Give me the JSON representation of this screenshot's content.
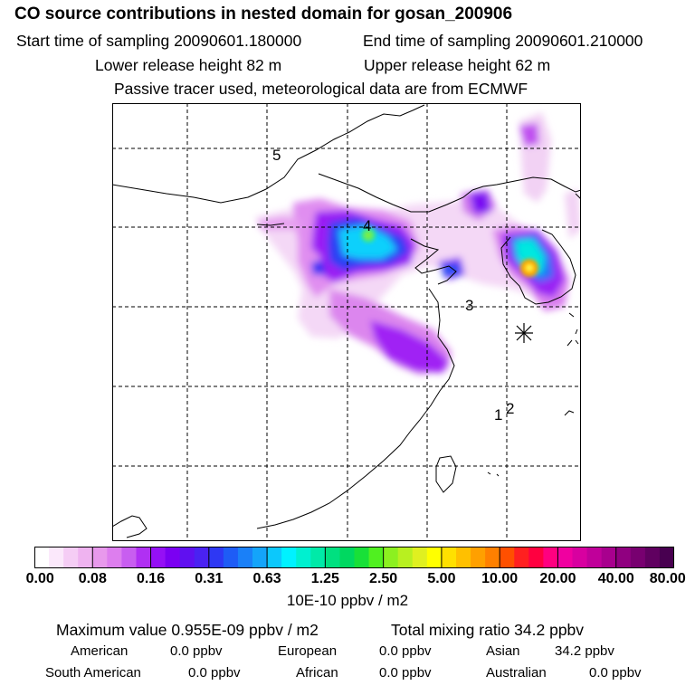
{
  "header": {
    "title": "CO  source contributions in nested domain for gosan_200906",
    "start_label": "Start time of sampling 20090601.180000",
    "end_label": "End time of sampling 20090601.210000",
    "lower_release": "Lower release height   82 m",
    "upper_release": "Upper release height   62 m",
    "tracer_note": "Passive tracer used, meteorological data are from ECMWF"
  },
  "map": {
    "labels": [
      "5",
      "4",
      "3",
      "2",
      "1"
    ],
    "colors": {
      "coast": "#000000",
      "grid": "#000000"
    }
  },
  "colorbar": {
    "colors": [
      "#ffffff",
      "#fbe8fb",
      "#f5cdf5",
      "#efb3f0",
      "#e899ec",
      "#dd7eee",
      "#c85ef0",
      "#b030f3",
      "#9510f5",
      "#7b00f2",
      "#6010f0",
      "#4a22f2",
      "#2e38f4",
      "#1e5cf6",
      "#1a80f8",
      "#14a4fa",
      "#0cc8fc",
      "#00f2ff",
      "#00f0d0",
      "#00eaa8",
      "#00e080",
      "#00d860",
      "#18e038",
      "#50f020",
      "#8cf020",
      "#b8f020",
      "#e0f020",
      "#ffff00",
      "#ffe000",
      "#ffc000",
      "#ffa000",
      "#ff8000",
      "#ff5000",
      "#ff2020",
      "#ff0040",
      "#ff0080",
      "#f000a0",
      "#d800a0",
      "#c0009a",
      "#a8008e",
      "#900080",
      "#780070",
      "#600060",
      "#480050"
    ],
    "tick_labels": [
      "0.00",
      "0.08",
      "0.16",
      "0.31",
      "0.63",
      "1.25",
      "2.50",
      "5.00",
      "10.00",
      "20.00",
      "40.00",
      "80.00"
    ],
    "unit": "10E-10 ppbv / m2"
  },
  "summary": {
    "max_value": "Maximum value  0.955E-09 ppbv / m2",
    "total": "Total mixing ratio       34.2 ppbv",
    "sources": [
      {
        "name": "American",
        "value": "0.0 ppbv"
      },
      {
        "name": "European",
        "value": "0.0 ppbv"
      },
      {
        "name": "Asian",
        "value": "34.2 ppbv"
      },
      {
        "name": "South American",
        "value": "0.0 ppbv"
      },
      {
        "name": "African",
        "value": "0.0 ppbv"
      },
      {
        "name": "Australian",
        "value": "0.0 ppbv"
      }
    ]
  }
}
